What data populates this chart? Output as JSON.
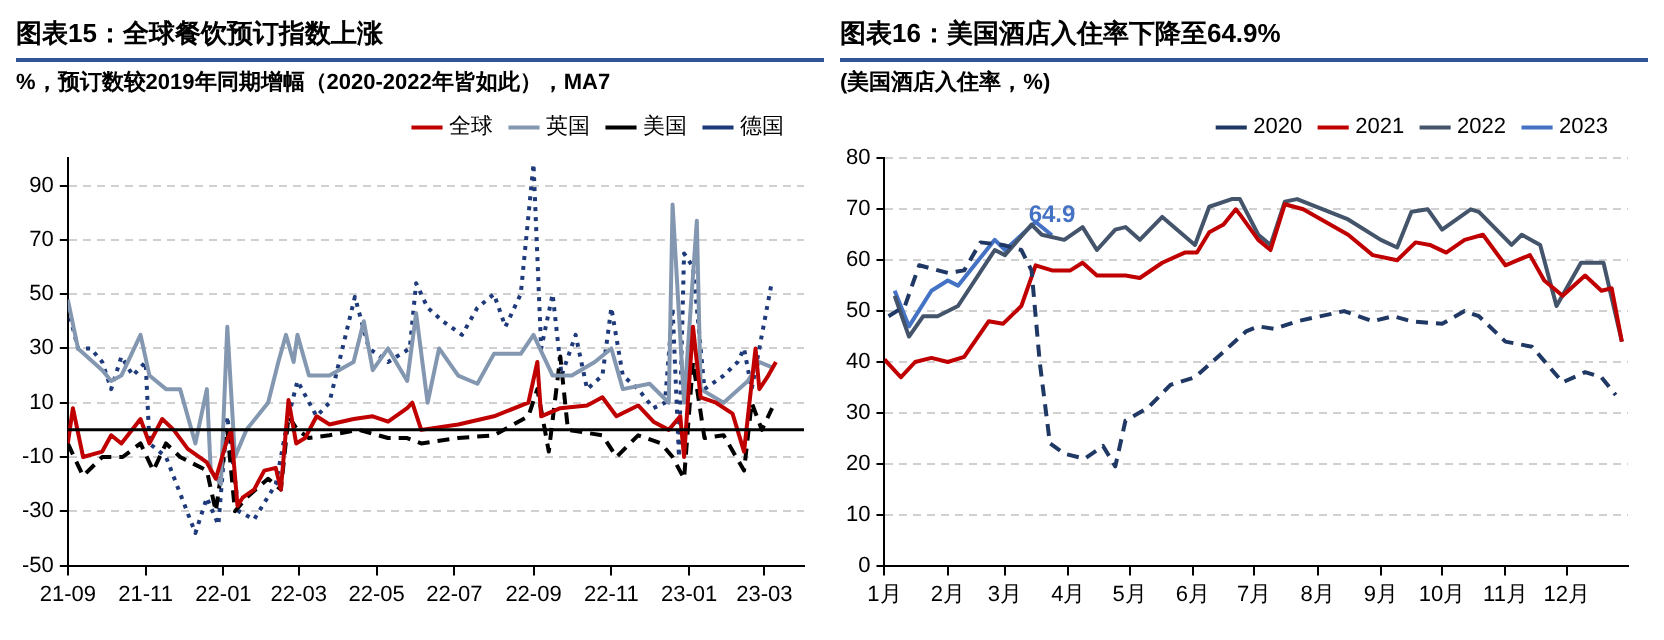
{
  "chart_data": [
    {
      "type": "line",
      "title": "图表15：全球餐饮预订指数上涨",
      "subtitle": "%，预订数较2019年同期增幅（2020-2022年皆如此），MA7",
      "legend": "top",
      "grid": "y",
      "marker": "none",
      "xlim": [
        "2021-09-01",
        "2023-04-01"
      ],
      "xticks": [
        {
          "value": "2021-09-01",
          "label": "21-09"
        },
        {
          "value": "2021-11-01",
          "label": "21-11"
        },
        {
          "value": "2022-01-01",
          "label": "22-01"
        },
        {
          "value": "2022-03-01",
          "label": "22-03"
        },
        {
          "value": "2022-05-01",
          "label": "22-05"
        },
        {
          "value": "2022-07-01",
          "label": "22-07"
        },
        {
          "value": "2022-09-01",
          "label": "22-09"
        },
        {
          "value": "2022-11-01",
          "label": "22-11"
        },
        {
          "value": "2023-01-01",
          "label": "23-01"
        },
        {
          "value": "2023-03-01",
          "label": "23-03"
        }
      ],
      "ylim": [
        -50,
        100
      ],
      "yticks": [
        -50,
        -30,
        -10,
        10,
        30,
        50,
        70,
        90
      ],
      "ref_lines": [
        {
          "axis": "y",
          "value": 0,
          "color": "#000000"
        }
      ],
      "series": [
        {
          "name": "全球",
          "color": "#c00000",
          "line_style": "solid",
          "x": [
            "2021-09-01",
            "2021-09-05",
            "2021-09-13",
            "2021-09-28",
            "2021-10-05",
            "2021-10-13",
            "2021-10-28",
            "2021-11-04",
            "2021-11-14",
            "2021-11-23",
            "2021-12-04",
            "2021-12-19",
            "2021-12-26",
            "2022-01-03",
            "2022-01-07",
            "2022-01-12",
            "2022-01-16",
            "2022-01-25",
            "2022-02-02",
            "2022-02-11",
            "2022-02-15",
            "2022-02-21",
            "2022-02-27",
            "2022-03-06",
            "2022-03-15",
            "2022-03-25",
            "2022-04-13",
            "2022-04-28",
            "2022-05-10",
            "2022-05-25",
            "2022-05-29",
            "2022-06-05",
            "2022-07-04",
            "2022-08-01",
            "2022-08-28",
            "2022-09-04",
            "2022-09-07",
            "2022-09-22",
            "2022-10-13",
            "2022-10-25",
            "2022-11-05",
            "2022-11-22",
            "2022-12-04",
            "2022-12-16",
            "2022-12-25",
            "2022-12-28",
            "2023-01-04",
            "2023-01-10",
            "2023-01-22",
            "2023-02-04",
            "2023-02-13",
            "2023-02-22",
            "2023-02-25",
            "2023-03-04",
            "2023-03-10"
          ],
          "values": [
            -5,
            8,
            -10,
            -8,
            -2,
            -5,
            4,
            -5,
            4,
            0,
            -7,
            -12,
            -18,
            -5,
            0,
            -28,
            -25,
            -22,
            -15,
            -14,
            -22,
            11,
            -5,
            -3,
            5,
            2,
            4,
            5,
            3,
            8,
            10,
            0,
            2,
            5,
            10,
            25,
            5,
            8,
            9,
            12,
            5,
            9,
            3,
            0,
            5,
            -10,
            38,
            12,
            10,
            6,
            -8,
            30,
            15,
            20,
            25
          ]
        },
        {
          "name": "英国",
          "color": "#8497b0",
          "line_style": "solid",
          "x": [
            "2021-09-01",
            "2021-09-09",
            "2021-09-28",
            "2021-10-05",
            "2021-10-13",
            "2021-10-28",
            "2021-11-04",
            "2021-11-17",
            "2021-11-28",
            "2021-12-10",
            "2021-12-19",
            "2021-12-22",
            "2021-12-30",
            "2022-01-04",
            "2022-01-10",
            "2022-01-19",
            "2022-02-05",
            "2022-02-13",
            "2022-02-19",
            "2022-02-25",
            "2022-02-28",
            "2022-03-09",
            "2022-03-25",
            "2022-04-13",
            "2022-04-21",
            "2022-04-28",
            "2022-05-10",
            "2022-05-25",
            "2022-06-01",
            "2022-06-10",
            "2022-06-19",
            "2022-07-04",
            "2022-07-19",
            "2022-08-01",
            "2022-08-22",
            "2022-09-01",
            "2022-09-16",
            "2022-10-01",
            "2022-10-19",
            "2022-11-01",
            "2022-11-10",
            "2022-12-01",
            "2022-12-16",
            "2022-12-19",
            "2022-12-28",
            "2023-01-07",
            "2023-01-10",
            "2023-01-28",
            "2023-02-16",
            "2023-02-25",
            "2023-03-07"
          ],
          "values": [
            48,
            30,
            22,
            18,
            20,
            35,
            20,
            15,
            15,
            -5,
            15,
            -15,
            -20,
            38,
            -10,
            0,
            10,
            25,
            35,
            25,
            35,
            20,
            20,
            25,
            40,
            22,
            30,
            18,
            43,
            10,
            30,
            20,
            17,
            28,
            28,
            35,
            20,
            20,
            25,
            30,
            15,
            17,
            10,
            83,
            10,
            77,
            15,
            10,
            18,
            25,
            23
          ]
        },
        {
          "name": "美国",
          "color": "#000000",
          "line_style": "dashed",
          "x": [
            "2021-09-01",
            "2021-09-13",
            "2021-09-28",
            "2021-10-14",
            "2021-10-28",
            "2021-11-07",
            "2021-11-17",
            "2021-11-28",
            "2021-12-19",
            "2021-12-26",
            "2022-01-04",
            "2022-01-10",
            "2022-01-19",
            "2022-02-05",
            "2022-02-15",
            "2022-02-21",
            "2022-02-28",
            "2022-03-09",
            "2022-03-25",
            "2022-04-17",
            "2022-05-10",
            "2022-05-25",
            "2022-06-05",
            "2022-07-04",
            "2022-08-01",
            "2022-08-28",
            "2022-09-04",
            "2022-09-13",
            "2022-09-22",
            "2022-09-28",
            "2022-10-25",
            "2022-11-05",
            "2022-11-22",
            "2022-12-10",
            "2022-12-19",
            "2022-12-28",
            "2023-01-04",
            "2023-01-13",
            "2023-01-28",
            "2023-02-13",
            "2023-02-19",
            "2023-02-27",
            "2023-03-07"
          ],
          "values": [
            -5,
            -17,
            -10,
            -10,
            -5,
            -15,
            -5,
            -10,
            -15,
            -30,
            0,
            -30,
            -25,
            -18,
            -22,
            5,
            0,
            -3,
            -2,
            0,
            -3,
            -3,
            -5,
            -3,
            -2,
            5,
            15,
            -8,
            27,
            0,
            -2,
            -10,
            -2,
            -5,
            -10,
            -18,
            25,
            -3,
            -2,
            -15,
            10,
            0,
            8
          ]
        },
        {
          "name": "德国",
          "color": "#1f3a7a",
          "line_style": "dotted",
          "x": [
            "2021-09-01",
            "2021-09-09",
            "2021-09-19",
            "2021-09-28",
            "2021-10-05",
            "2021-10-13",
            "2021-10-22",
            "2021-11-01",
            "2021-11-04",
            "2021-11-17",
            "2021-12-10",
            "2021-12-19",
            "2021-12-28",
            "2022-01-04",
            "2022-01-13",
            "2022-01-25",
            "2022-02-11",
            "2022-02-21",
            "2022-02-28",
            "2022-03-15",
            "2022-03-25",
            "2022-04-14",
            "2022-04-25",
            "2022-05-10",
            "2022-05-27",
            "2022-06-01",
            "2022-06-10",
            "2022-06-22",
            "2022-07-07",
            "2022-07-19",
            "2022-08-01",
            "2022-08-10",
            "2022-08-22",
            "2022-09-01",
            "2022-09-07",
            "2022-09-16",
            "2022-09-23",
            "2022-10-04",
            "2022-10-13",
            "2022-10-25",
            "2022-11-01",
            "2022-11-10",
            "2022-11-22",
            "2022-12-04",
            "2022-12-13",
            "2022-12-19",
            "2022-12-24",
            "2022-12-28",
            "2023-01-04",
            "2023-01-13",
            "2023-01-28",
            "2023-02-08",
            "2023-02-13",
            "2023-02-19",
            "2023-02-27",
            "2023-03-07"
          ],
          "values": [
            45,
            30,
            30,
            25,
            15,
            27,
            20,
            25,
            -5,
            -10,
            -38,
            -25,
            -35,
            5,
            -30,
            -33,
            -20,
            5,
            18,
            5,
            10,
            49,
            30,
            25,
            30,
            54,
            45,
            40,
            35,
            45,
            50,
            38,
            50,
            98,
            30,
            50,
            20,
            35,
            15,
            20,
            45,
            20,
            15,
            8,
            10,
            45,
            -10,
            65,
            60,
            15,
            20,
            25,
            30,
            15,
            35,
            55
          ]
        }
      ]
    },
    {
      "type": "line",
      "title": "图表16：美国酒店入住率下降至64.9%",
      "subtitle": "(美国酒店入住率，%)",
      "legend": "top",
      "grid": "y",
      "marker": "none",
      "xlim": [
        "--01-01",
        "--12-31"
      ],
      "xticks": [
        {
          "value": "--01-01",
          "label": "1月"
        },
        {
          "value": "--02-01",
          "label": "2月"
        },
        {
          "value": "--03-01",
          "label": "3月"
        },
        {
          "value": "--04-01",
          "label": "4月"
        },
        {
          "value": "--05-01",
          "label": "5月"
        },
        {
          "value": "--06-01",
          "label": "6月"
        },
        {
          "value": "--07-01",
          "label": "7月"
        },
        {
          "value": "--08-01",
          "label": "8月"
        },
        {
          "value": "--09-01",
          "label": "9月"
        },
        {
          "value": "--10-01",
          "label": "10月"
        },
        {
          "value": "--11-01",
          "label": "11月"
        },
        {
          "value": "--12-01",
          "label": "12月"
        }
      ],
      "ylim": [
        0,
        80
      ],
      "yticks": [
        0,
        10,
        20,
        30,
        40,
        50,
        60,
        70,
        80
      ],
      "annotations": [
        {
          "text": "64.9",
          "x": "--03-24",
          "y": 64.9
        }
      ],
      "series": [
        {
          "name": "2020",
          "color": "#203864",
          "line_style": "dashed",
          "x": [
            "--01-03",
            "--01-11",
            "--01-18",
            "--02-01",
            "--02-09",
            "--02-17",
            "--02-28",
            "--03-09",
            "--03-14",
            "--03-18",
            "--03-23",
            "--03-30",
            "--04-09",
            "--04-18",
            "--04-24",
            "--04-29",
            "--05-10",
            "--05-21",
            "--06-02",
            "--06-16",
            "--06-27",
            "--07-03",
            "--07-11",
            "--07-22",
            "--08-14",
            "--08-28",
            "--09-07",
            "--09-16",
            "--10-01",
            "--10-12",
            "--10-19",
            "--11-01",
            "--11-14",
            "--11-29",
            "--12-10",
            "--12-18",
            "--12-25"
          ],
          "values": [
            49,
            51,
            59,
            57.5,
            58,
            63.5,
            63,
            62,
            58,
            40,
            24,
            22,
            21,
            23.5,
            19.5,
            28.5,
            31,
            35.5,
            37,
            42,
            46,
            47,
            46.5,
            48,
            50,
            48,
            49,
            48,
            47.5,
            50,
            49,
            44,
            43,
            36,
            38,
            37,
            33.5
          ]
        },
        {
          "name": "2021",
          "color": "#c00000",
          "line_style": "solid",
          "x": [
            "--01-01",
            "--01-09",
            "--01-16",
            "--01-24",
            "--02-01",
            "--02-09",
            "--02-21",
            "--02-28",
            "--03-09",
            "--03-16",
            "--03-24",
            "--04-02",
            "--04-08",
            "--04-15",
            "--04-29",
            "--05-06",
            "--05-17",
            "--05-28",
            "--06-03",
            "--06-09",
            "--06-16",
            "--06-22",
            "--06-24",
            "--07-03",
            "--07-09",
            "--07-16",
            "--07-25",
            "--08-16",
            "--08-28",
            "--09-09",
            "--09-18",
            "--09-25",
            "--10-03",
            "--10-12",
            "--10-21",
            "--11-01",
            "--11-07",
            "--11-13",
            "--11-20",
            "--11-29",
            "--12-10",
            "--12-18",
            "--12-23",
            "--12-28"
          ],
          "values": [
            40.5,
            37,
            40,
            40.8,
            40,
            41,
            48,
            47.5,
            51,
            59,
            58,
            58,
            59.5,
            57,
            57,
            56.5,
            59.5,
            61.5,
            61.5,
            65.5,
            67,
            70,
            69,
            64,
            62,
            71,
            70,
            65,
            61,
            60,
            63.5,
            63,
            61.5,
            64,
            65,
            59,
            60,
            61,
            56,
            53,
            57,
            54,
            54.5,
            44
          ]
        },
        {
          "name": "2022",
          "color": "#44546a",
          "line_style": "solid",
          "x": [
            "--01-06",
            "--01-13",
            "--01-20",
            "--01-27",
            "--02-06",
            "--02-24",
            "--03-01",
            "--03-14",
            "--03-19",
            "--03-30",
            "--04-08",
            "--04-15",
            "--04-24",
            "--04-29",
            "--05-06",
            "--05-17",
            "--06-02",
            "--06-09",
            "--06-20",
            "--06-24",
            "--07-03",
            "--07-09",
            "--07-16",
            "--07-22",
            "--08-16",
            "--09-01",
            "--09-09",
            "--09-16",
            "--09-24",
            "--10-01",
            "--10-15",
            "--10-19",
            "--11-04",
            "--11-09",
            "--11-18",
            "--11-26",
            "--12-08",
            "--12-19",
            "--12-28"
          ],
          "values": [
            53,
            45,
            49,
            49,
            51,
            62,
            61,
            67,
            65,
            64,
            66.5,
            62,
            66,
            66.5,
            64,
            68.5,
            63,
            70.5,
            72,
            72,
            65,
            63,
            71.5,
            72,
            68,
            64,
            62.5,
            69.5,
            70,
            66,
            70,
            69.5,
            63,
            65,
            63,
            51,
            59.5,
            59.5,
            44
          ]
        },
        {
          "name": "2023",
          "color": "#4472c4",
          "line_style": "solid",
          "x": [
            "--01-06",
            "--01-13",
            "--01-24",
            "--02-01",
            "--02-06",
            "--02-24",
            "--03-01",
            "--03-16",
            "--03-24"
          ],
          "values": [
            54,
            47,
            54,
            56,
            55,
            64,
            62,
            67.5,
            64.9
          ]
        }
      ]
    }
  ]
}
